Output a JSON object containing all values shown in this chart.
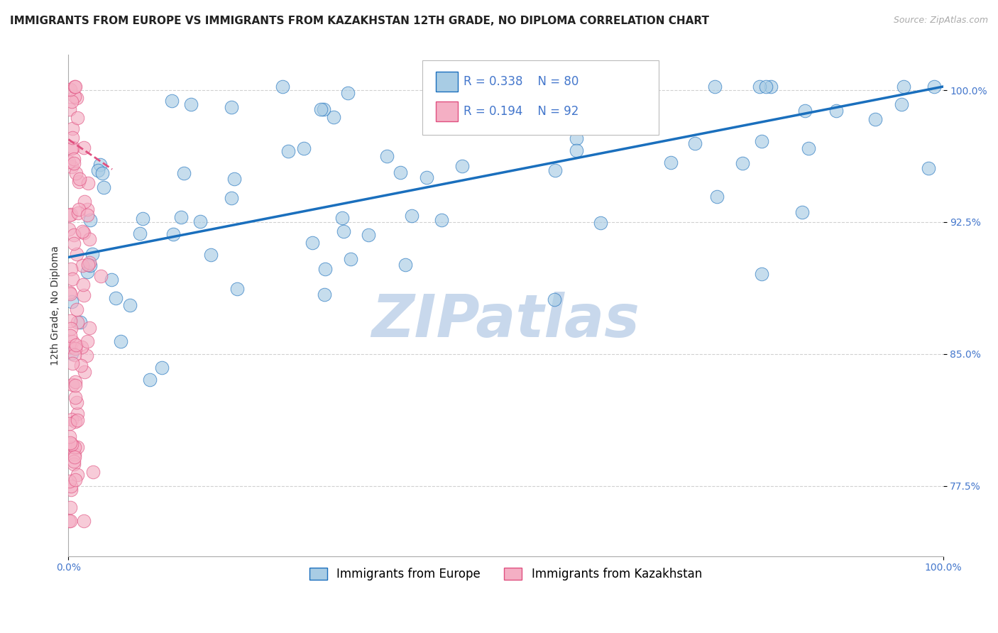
{
  "title": "IMMIGRANTS FROM EUROPE VS IMMIGRANTS FROM KAZAKHSTAN 12TH GRADE, NO DIPLOMA CORRELATION CHART",
  "source_text": "Source: ZipAtlas.com",
  "ylabel": "12th Grade, No Diploma",
  "r_blue": 0.338,
  "n_blue": 80,
  "r_pink": 0.194,
  "n_pink": 92,
  "blue_color": "#a8cce4",
  "pink_color": "#f4afc4",
  "trend_blue": "#1a6fbd",
  "trend_pink": "#e05080",
  "axis_color": "#4477cc",
  "xlim": [
    0.0,
    1.0
  ],
  "ylim": [
    0.735,
    1.02
  ],
  "yticks": [
    0.775,
    0.85,
    0.925,
    1.0
  ],
  "ytick_labels": [
    "77.5%",
    "85.0%",
    "92.5%",
    "100.0%"
  ],
  "xticks": [
    0.0,
    1.0
  ],
  "xtick_labels": [
    "0.0%",
    "100.0%"
  ],
  "legend_label_blue": "Immigrants from Europe",
  "legend_label_pink": "Immigrants from Kazakhstan",
  "blue_trend_x0": 0.0,
  "blue_trend_y0": 0.905,
  "blue_trend_x1": 1.0,
  "blue_trend_y1": 1.002,
  "pink_trend_x0": 0.0,
  "pink_trend_y0": 0.972,
  "pink_trend_x1": 0.05,
  "pink_trend_y1": 0.955,
  "background_color": "#ffffff",
  "grid_color": "#cccccc",
  "watermark_text": "ZIPatlas",
  "watermark_color": "#c8d8ec",
  "title_fontsize": 11,
  "axis_label_fontsize": 10,
  "tick_fontsize": 10,
  "legend_fontsize": 12
}
